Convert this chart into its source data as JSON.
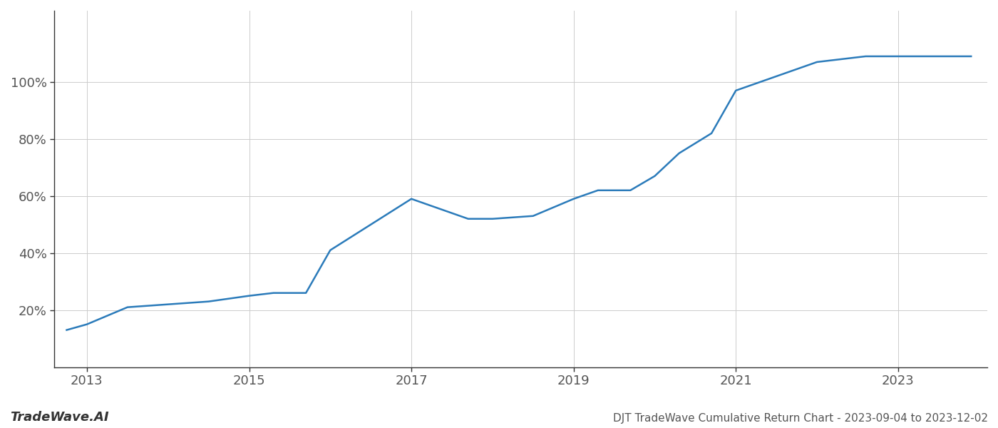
{
  "x": [
    2012.75,
    2013.0,
    2013.5,
    2014.0,
    2014.5,
    2015.0,
    2015.3,
    2015.7,
    2016.0,
    2016.5,
    2017.0,
    2017.3,
    2017.7,
    2018.0,
    2018.5,
    2019.0,
    2019.3,
    2019.7,
    2020.0,
    2020.3,
    2020.7,
    2021.0,
    2021.3,
    2021.7,
    2022.0,
    2022.3,
    2022.6,
    2022.9,
    2023.5,
    2023.9
  ],
  "y": [
    13,
    15,
    21,
    22,
    23,
    25,
    26,
    26,
    41,
    50,
    59,
    56,
    52,
    52,
    53,
    59,
    62,
    62,
    67,
    75,
    82,
    97,
    100,
    104,
    107,
    108,
    109,
    109,
    109,
    109
  ],
  "line_color": "#2b7bba",
  "line_width": 1.8,
  "title": "DJT TradeWave Cumulative Return Chart - 2023-09-04 to 2023-12-02",
  "watermark": "TradeWave.AI",
  "bg_color": "#ffffff",
  "grid_color": "#cccccc",
  "xlim": [
    2012.6,
    2024.1
  ],
  "ylim": [
    0,
    125
  ],
  "xticks": [
    2013,
    2015,
    2017,
    2019,
    2021,
    2023
  ],
  "yticks": [
    20,
    40,
    60,
    80,
    100
  ],
  "ytick_labels": [
    "20%",
    "40%",
    "60%",
    "80%",
    "100%"
  ],
  "title_fontsize": 11,
  "tick_fontsize": 13,
  "watermark_fontsize": 13,
  "spine_color": "#333333"
}
